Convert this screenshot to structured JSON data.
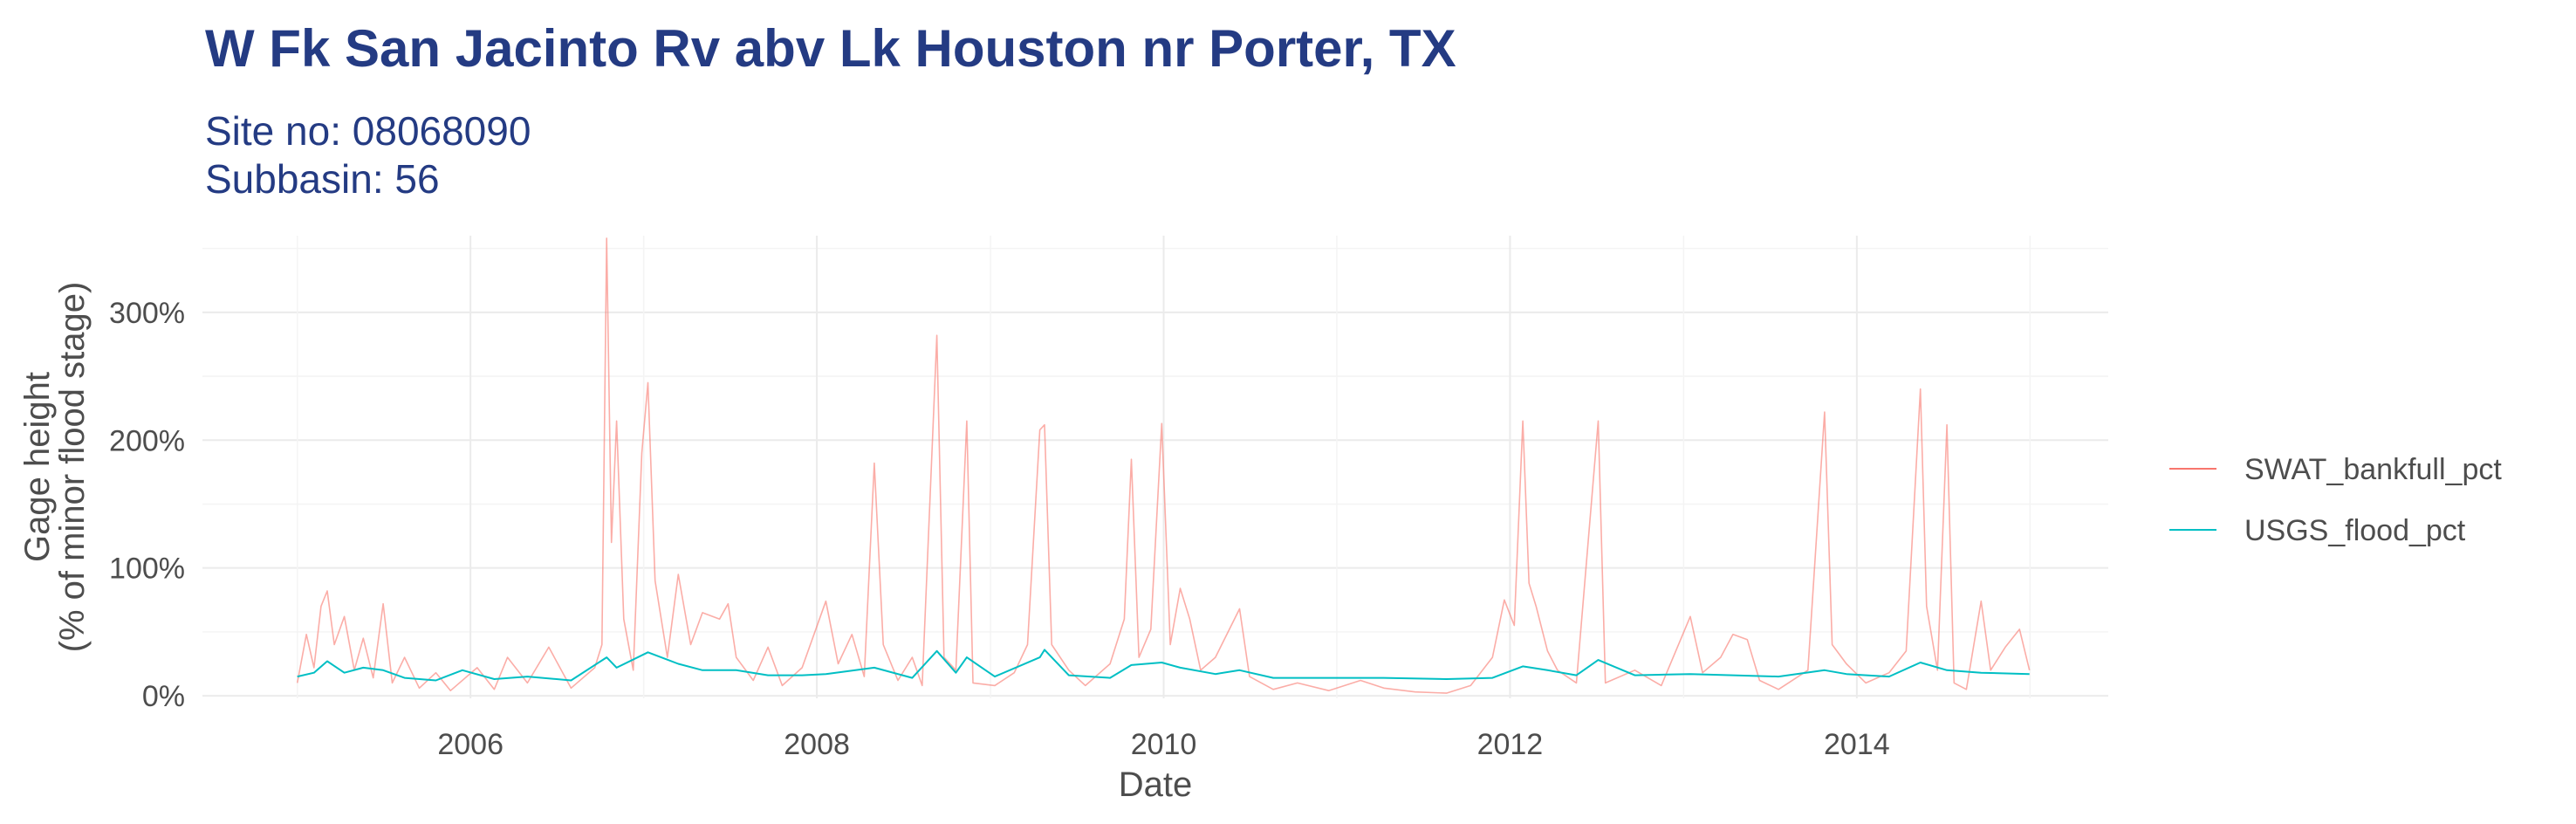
{
  "chart_data": {
    "type": "line",
    "title": "W Fk San Jacinto Rv abv Lk Houston nr Porter, TX",
    "subtitle_lines": [
      "Site no: 08068090",
      "Subbasin: 56"
    ],
    "xlabel": "Date",
    "ylabel_lines": [
      "Gage height",
      "(% of minor flood stage)"
    ],
    "x_range": [
      "2004-06-15",
      "2015-06-15"
    ],
    "ylim": [
      -2,
      360
    ],
    "x_ticks": [
      {
        "date": "2006-01-01",
        "label": "2006"
      },
      {
        "date": "2008-01-01",
        "label": "2008"
      },
      {
        "date": "2010-01-01",
        "label": "2010"
      },
      {
        "date": "2012-01-01",
        "label": "2012"
      },
      {
        "date": "2014-01-01",
        "label": "2014"
      }
    ],
    "y_ticks": [
      {
        "value": 0,
        "label": "0%"
      },
      {
        "value": 100,
        "label": "100%"
      },
      {
        "value": 200,
        "label": "200%"
      },
      {
        "value": 300,
        "label": "300%"
      }
    ],
    "grid": true,
    "legend_position": "right",
    "series": [
      {
        "name": "SWAT_bankfull_pct",
        "color": "#F8766D",
        "points": [
          [
            "2005-01-01",
            10
          ],
          [
            "2005-01-20",
            48
          ],
          [
            "2005-02-05",
            22
          ],
          [
            "2005-02-20",
            70
          ],
          [
            "2005-03-05",
            82
          ],
          [
            "2005-03-20",
            40
          ],
          [
            "2005-04-10",
            62
          ],
          [
            "2005-05-01",
            20
          ],
          [
            "2005-05-20",
            45
          ],
          [
            "2005-06-10",
            14
          ],
          [
            "2005-07-01",
            72
          ],
          [
            "2005-07-20",
            10
          ],
          [
            "2005-08-15",
            30
          ],
          [
            "2005-09-15",
            6
          ],
          [
            "2005-10-20",
            18
          ],
          [
            "2005-11-20",
            4
          ],
          [
            "2006-01-15",
            22
          ],
          [
            "2006-02-20",
            5
          ],
          [
            "2006-03-20",
            30
          ],
          [
            "2006-05-01",
            10
          ],
          [
            "2006-06-15",
            38
          ],
          [
            "2006-08-01",
            6
          ],
          [
            "2006-09-20",
            22
          ],
          [
            "2006-10-05",
            40
          ],
          [
            "2006-10-15",
            358
          ],
          [
            "2006-10-25",
            120
          ],
          [
            "2006-11-05",
            215
          ],
          [
            "2006-11-20",
            60
          ],
          [
            "2006-12-10",
            20
          ],
          [
            "2006-12-28",
            190
          ],
          [
            "2007-01-10",
            245
          ],
          [
            "2007-01-25",
            90
          ],
          [
            "2007-02-20",
            30
          ],
          [
            "2007-03-15",
            95
          ],
          [
            "2007-04-10",
            40
          ],
          [
            "2007-05-05",
            65
          ],
          [
            "2007-06-10",
            60
          ],
          [
            "2007-06-28",
            72
          ],
          [
            "2007-07-15",
            30
          ],
          [
            "2007-08-20",
            12
          ],
          [
            "2007-09-20",
            38
          ],
          [
            "2007-10-20",
            8
          ],
          [
            "2007-12-01",
            22
          ],
          [
            "2008-01-20",
            74
          ],
          [
            "2008-02-15",
            25
          ],
          [
            "2008-03-15",
            48
          ],
          [
            "2008-04-10",
            15
          ],
          [
            "2008-05-01",
            182
          ],
          [
            "2008-05-20",
            40
          ],
          [
            "2008-06-20",
            12
          ],
          [
            "2008-07-20",
            30
          ],
          [
            "2008-08-10",
            8
          ],
          [
            "2008-09-10",
            282
          ],
          [
            "2008-09-25",
            30
          ],
          [
            "2008-10-20",
            20
          ],
          [
            "2008-11-12",
            215
          ],
          [
            "2008-11-25",
            10
          ],
          [
            "2009-01-10",
            8
          ],
          [
            "2009-02-20",
            18
          ],
          [
            "2009-03-20",
            40
          ],
          [
            "2009-04-15",
            208
          ],
          [
            "2009-04-25",
            212
          ],
          [
            "2009-05-10",
            40
          ],
          [
            "2009-06-15",
            20
          ],
          [
            "2009-07-20",
            8
          ],
          [
            "2009-09-10",
            25
          ],
          [
            "2009-10-10",
            60
          ],
          [
            "2009-10-25",
            185
          ],
          [
            "2009-11-10",
            30
          ],
          [
            "2009-12-05",
            52
          ],
          [
            "2009-12-28",
            213
          ],
          [
            "2010-01-15",
            40
          ],
          [
            "2010-02-05",
            84
          ],
          [
            "2010-02-25",
            60
          ],
          [
            "2010-03-20",
            20
          ],
          [
            "2010-04-20",
            30
          ],
          [
            "2010-06-10",
            68
          ],
          [
            "2010-07-01",
            15
          ],
          [
            "2010-08-20",
            5
          ],
          [
            "2010-10-10",
            10
          ],
          [
            "2010-12-15",
            4
          ],
          [
            "2011-02-20",
            12
          ],
          [
            "2011-04-10",
            6
          ],
          [
            "2011-06-15",
            3
          ],
          [
            "2011-08-20",
            2
          ],
          [
            "2011-10-10",
            8
          ],
          [
            "2011-11-25",
            30
          ],
          [
            "2011-12-20",
            75
          ],
          [
            "2012-01-10",
            55
          ],
          [
            "2012-01-28",
            215
          ],
          [
            "2012-02-10",
            88
          ],
          [
            "2012-02-25",
            70
          ],
          [
            "2012-03-20",
            35
          ],
          [
            "2012-04-10",
            20
          ],
          [
            "2012-05-20",
            10
          ],
          [
            "2012-07-05",
            215
          ],
          [
            "2012-07-20",
            10
          ],
          [
            "2012-09-20",
            20
          ],
          [
            "2012-11-15",
            8
          ],
          [
            "2013-01-15",
            62
          ],
          [
            "2013-02-10",
            18
          ],
          [
            "2013-03-20",
            30
          ],
          [
            "2013-04-15",
            48
          ],
          [
            "2013-05-15",
            44
          ],
          [
            "2013-06-10",
            12
          ],
          [
            "2013-07-20",
            5
          ],
          [
            "2013-09-20",
            20
          ],
          [
            "2013-10-25",
            222
          ],
          [
            "2013-11-10",
            40
          ],
          [
            "2013-12-10",
            25
          ],
          [
            "2014-01-20",
            10
          ],
          [
            "2014-03-10",
            18
          ],
          [
            "2014-04-15",
            35
          ],
          [
            "2014-05-15",
            240
          ],
          [
            "2014-05-28",
            70
          ],
          [
            "2014-06-20",
            20
          ],
          [
            "2014-07-10",
            212
          ],
          [
            "2014-07-25",
            10
          ],
          [
            "2014-08-20",
            5
          ],
          [
            "2014-09-20",
            74
          ],
          [
            "2014-10-10",
            20
          ],
          [
            "2014-11-10",
            38
          ],
          [
            "2014-12-10",
            52
          ],
          [
            "2014-12-31",
            20
          ]
        ]
      },
      {
        "name": "USGS_flood_pct",
        "color": "#00BFC4",
        "points": [
          [
            "2005-01-01",
            15
          ],
          [
            "2005-02-05",
            18
          ],
          [
            "2005-03-05",
            27
          ],
          [
            "2005-04-10",
            18
          ],
          [
            "2005-05-20",
            22
          ],
          [
            "2005-07-01",
            20
          ],
          [
            "2005-08-15",
            14
          ],
          [
            "2005-10-20",
            12
          ],
          [
            "2005-12-15",
            20
          ],
          [
            "2006-02-20",
            13
          ],
          [
            "2006-05-01",
            15
          ],
          [
            "2006-08-01",
            12
          ],
          [
            "2006-10-15",
            30
          ],
          [
            "2006-11-05",
            22
          ],
          [
            "2007-01-10",
            34
          ],
          [
            "2007-03-15",
            25
          ],
          [
            "2007-05-05",
            20
          ],
          [
            "2007-07-15",
            20
          ],
          [
            "2007-09-20",
            16
          ],
          [
            "2007-12-01",
            16
          ],
          [
            "2008-01-20",
            17
          ],
          [
            "2008-05-01",
            22
          ],
          [
            "2008-07-20",
            14
          ],
          [
            "2008-09-10",
            35
          ],
          [
            "2008-10-20",
            18
          ],
          [
            "2008-11-12",
            30
          ],
          [
            "2009-01-10",
            15
          ],
          [
            "2009-04-15",
            30
          ],
          [
            "2009-04-25",
            36
          ],
          [
            "2009-06-15",
            16
          ],
          [
            "2009-09-10",
            14
          ],
          [
            "2009-10-25",
            24
          ],
          [
            "2009-12-28",
            26
          ],
          [
            "2010-02-05",
            22
          ],
          [
            "2010-04-20",
            17
          ],
          [
            "2010-06-10",
            20
          ],
          [
            "2010-08-20",
            14
          ],
          [
            "2010-12-15",
            14
          ],
          [
            "2011-04-10",
            14
          ],
          [
            "2011-08-20",
            13
          ],
          [
            "2011-11-25",
            14
          ],
          [
            "2012-01-28",
            23
          ],
          [
            "2012-03-20",
            20
          ],
          [
            "2012-05-20",
            16
          ],
          [
            "2012-07-05",
            28
          ],
          [
            "2012-09-20",
            16
          ],
          [
            "2013-01-15",
            17
          ],
          [
            "2013-04-15",
            16
          ],
          [
            "2013-07-20",
            15
          ],
          [
            "2013-10-25",
            20
          ],
          [
            "2013-12-10",
            17
          ],
          [
            "2014-03-10",
            15
          ],
          [
            "2014-05-15",
            26
          ],
          [
            "2014-07-10",
            20
          ],
          [
            "2014-09-20",
            18
          ],
          [
            "2014-12-31",
            17
          ]
        ]
      }
    ]
  }
}
